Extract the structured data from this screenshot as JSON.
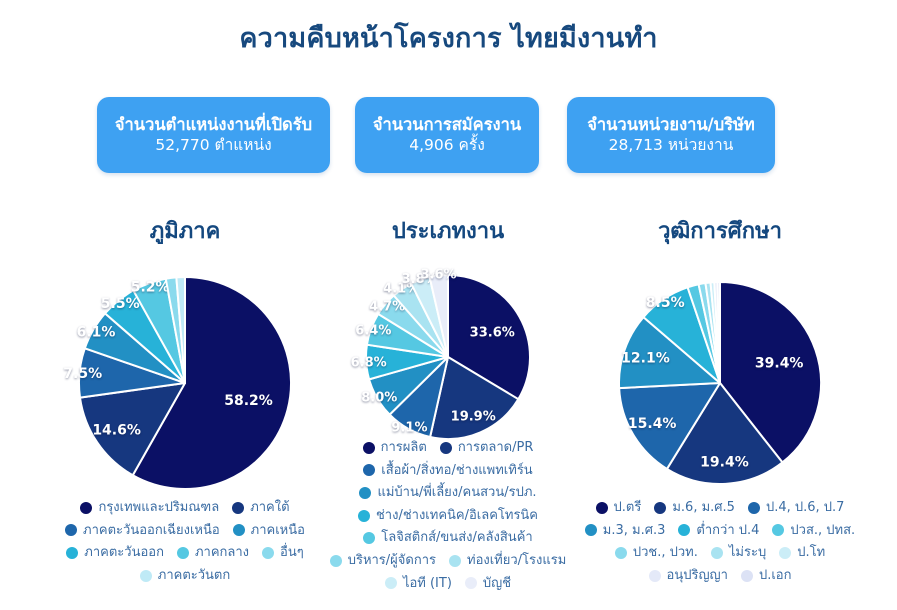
{
  "page": {
    "title": "ความคืบหน้าโครงการ ไทยมีงานทำ"
  },
  "colors": {
    "card_bg": "#3EA1F2",
    "title_text": "#17497E",
    "chart_title_text": "#14487F",
    "legend_text": "#3A6CA3",
    "slice_label_text": "#FFFFFF"
  },
  "stat_cards": [
    {
      "label": "จำนวนตำแหน่งงานที่เปิดรับ",
      "value": "52,770 ตำแหน่ง"
    },
    {
      "label": "จำนวนการสมัครงาน",
      "value": "4,906 ครั้ง"
    },
    {
      "label": "จำนวนหน่วยงาน/บริษัท",
      "value": "28,713 หน่วยงาน"
    }
  ],
  "chart_data": [
    {
      "type": "pie",
      "title": "ภูมิภาค",
      "start_angle_deg": 0,
      "direction": "clockwise",
      "legend_position": "bottom",
      "slices": [
        {
          "label": "กรุงเทพและปริมณฑล",
          "value": 58.2,
          "display": "58.2%",
          "show_label": true,
          "color": "#0B1065"
        },
        {
          "label": "ภาคใต้",
          "value": 14.6,
          "display": "14.6%",
          "show_label": true,
          "color": "#16377F"
        },
        {
          "label": "ภาคตะวันออกเฉียงเหนือ",
          "value": 7.5,
          "display": "7.5%",
          "show_label": true,
          "color": "#1E66AB"
        },
        {
          "label": "ภาคเหนือ",
          "value": 6.1,
          "display": "6.1%",
          "show_label": true,
          "color": "#2290C4"
        },
        {
          "label": "ภาคตะวันออก",
          "value": 5.5,
          "display": "5.5%",
          "show_label": true,
          "color": "#27B2D8"
        },
        {
          "label": "ภาคกลาง",
          "value": 5.2,
          "display": "5.2%",
          "show_label": true,
          "color": "#55C8E2"
        },
        {
          "label": "อื่นๆ",
          "value": 1.6,
          "display": "",
          "show_label": false,
          "color": "#8ADAED"
        },
        {
          "label": "ภาคตะวันตก",
          "value": 1.3,
          "display": "",
          "show_label": false,
          "color": "#BFEAF6"
        }
      ],
      "layout": {
        "size": 230,
        "r": 106,
        "label_font": 14
      }
    },
    {
      "type": "pie",
      "title": "ประเภทงาน",
      "start_angle_deg": 0,
      "direction": "clockwise",
      "legend_position": "bottom",
      "slices": [
        {
          "label": "การผลิต",
          "value": 33.6,
          "display": "33.6%",
          "show_label": true,
          "color": "#0B1065"
        },
        {
          "label": "การตลาด/PR",
          "value": 19.9,
          "display": "19.9%",
          "show_label": true,
          "color": "#16377F"
        },
        {
          "label": "เสื้อผ้า/สิ่งทอ/ช่างแพทเทิร์น",
          "value": 9.1,
          "display": "9.1%",
          "show_label": true,
          "color": "#1E66AB"
        },
        {
          "label": "แม่บ้าน/พี่เลี้ยง/คนสวน/รปภ.",
          "value": 8.0,
          "display": "8.0%",
          "show_label": true,
          "color": "#2290C4"
        },
        {
          "label": "ช่าง/ช่างเทคนิค/อิเลคโทรนิค",
          "value": 6.8,
          "display": "6.8%",
          "show_label": true,
          "color": "#27B2D8"
        },
        {
          "label": "โลจิสติกส์/ขนส่ง/คลังสินค้า",
          "value": 6.4,
          "display": "6.4%",
          "show_label": true,
          "color": "#55C8E2"
        },
        {
          "label": "บริหาร/ผู้จัดการ",
          "value": 4.7,
          "display": "4.7%",
          "show_label": true,
          "color": "#8ADAED"
        },
        {
          "label": "ท่องเที่ยว/โรงแรม",
          "value": 4.1,
          "display": "4.1%",
          "show_label": true,
          "color": "#A9E3F1"
        },
        {
          "label": "ไอที (IT)",
          "value": 3.8,
          "display": "3.8%",
          "show_label": true,
          "color": "#CBEDF7"
        },
        {
          "label": "บัญชี",
          "value": 3.6,
          "display": "3.6%",
          "show_label": true,
          "color": "#E9EDF9"
        }
      ],
      "layout": {
        "size": 186,
        "r": 82,
        "label_font": 13
      }
    },
    {
      "type": "pie",
      "title": "วุฒิการศึกษา",
      "start_angle_deg": 0,
      "direction": "clockwise",
      "legend_position": "bottom",
      "slices": [
        {
          "label": "ป.ตรี",
          "value": 39.4,
          "display": "39.4%",
          "show_label": true,
          "color": "#0B1065"
        },
        {
          "label": "ม.6, ม.ศ.5",
          "value": 19.4,
          "display": "19.4%",
          "show_label": true,
          "color": "#16377F"
        },
        {
          "label": "ป.4, ป.6, ป.7",
          "value": 15.4,
          "display": "15.4%",
          "show_label": true,
          "color": "#1E66AB"
        },
        {
          "label": "ม.3, ม.ศ.3",
          "value": 12.1,
          "display": "12.1%",
          "show_label": true,
          "color": "#2290C4"
        },
        {
          "label": "ต่ำกว่า ป.4",
          "value": 8.5,
          "display": "8.5%",
          "show_label": true,
          "color": "#27B2D8"
        },
        {
          "label": "ปวส., ปทส.",
          "value": 1.8,
          "display": "",
          "show_label": false,
          "color": "#55C8E2"
        },
        {
          "label": "ปวช., ปวท.",
          "value": 1.1,
          "display": "",
          "show_label": false,
          "color": "#8ADAED"
        },
        {
          "label": "ไม่ระบุ",
          "value": 0.8,
          "display": "",
          "show_label": false,
          "color": "#A9E3F1"
        },
        {
          "label": "ป.โท",
          "value": 0.6,
          "display": "",
          "show_label": false,
          "color": "#CBEDF7"
        },
        {
          "label": "อนุปริญญา",
          "value": 0.5,
          "display": "",
          "show_label": false,
          "color": "#E4E9F8"
        },
        {
          "label": "ป.เอก",
          "value": 0.4,
          "display": "",
          "show_label": false,
          "color": "#DCE2F5"
        }
      ],
      "layout": {
        "size": 220,
        "r": 101,
        "label_font": 14
      }
    }
  ]
}
